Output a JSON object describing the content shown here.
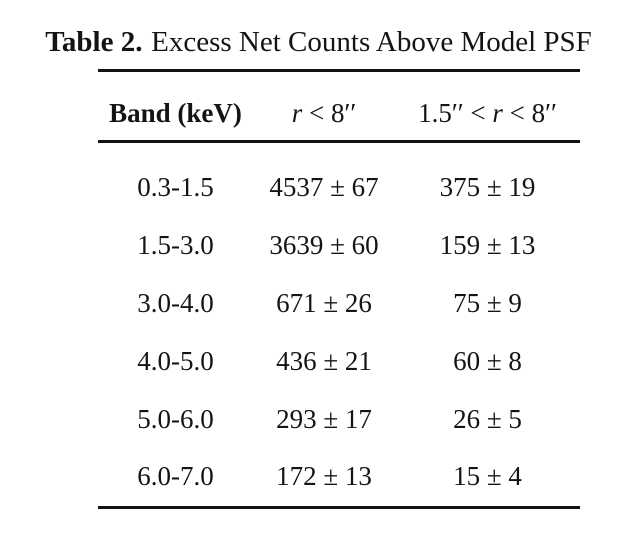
{
  "title": {
    "label": "Table 2.",
    "caption": "Excess Net Counts Above Model PSF"
  },
  "table": {
    "columns": [
      {
        "label": "Band (keV)"
      },
      {
        "var": "r",
        "post": " < 8′′"
      },
      {
        "pre": "1.5′′ < ",
        "var": "r",
        "post": " < 8′′"
      }
    ],
    "rows": [
      {
        "band": "0.3-1.5",
        "r_lt_8": "4537 ± 67",
        "r_1p5_to_8": "375 ± 19"
      },
      {
        "band": "1.5-3.0",
        "r_lt_8": "3639 ± 60",
        "r_1p5_to_8": "159 ± 13"
      },
      {
        "band": "3.0-4.0",
        "r_lt_8": "671 ± 26",
        "r_1p5_to_8": "75 ± 9"
      },
      {
        "band": "4.0-5.0",
        "r_lt_8": "436 ± 21",
        "r_1p5_to_8": "60 ± 8"
      },
      {
        "band": "5.0-6.0",
        "r_lt_8": "293 ± 17",
        "r_1p5_to_8": "26 ± 5"
      },
      {
        "band": "6.0-7.0",
        "r_lt_8": "172 ± 13",
        "r_1p5_to_8": "15 ± 4"
      }
    ]
  },
  "colors": {
    "background": "#ffffff",
    "text": "#141414",
    "rule": "#141414"
  }
}
